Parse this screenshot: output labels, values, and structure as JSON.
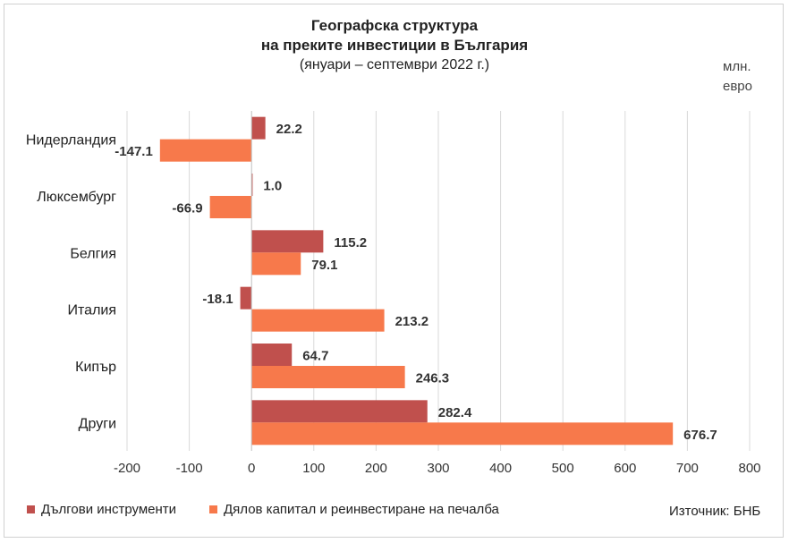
{
  "chart_data": {
    "type": "bar",
    "orientation": "horizontal",
    "title": "Географска структура",
    "title_line2": "на преките инвестиции в България",
    "subtitle": "(януари – септември 2022 г.)",
    "unit_line1": "млн.",
    "unit_line2": "евро",
    "categories": [
      "Нидерландия",
      "Люксембург",
      "Белгия",
      "Италия",
      "Кипър",
      "Други"
    ],
    "series": [
      {
        "name": "Дългови инструменти",
        "color": "#c0504d",
        "values": [
          22.2,
          1.0,
          115.2,
          -18.1,
          64.7,
          282.4
        ],
        "labels": [
          "22.2",
          "1.0",
          "115.2",
          "-18.1",
          "64.7",
          "282.4"
        ]
      },
      {
        "name": "Дялов капитал и реинвестиране на печалба",
        "color": "#f7794b",
        "values": [
          -147.1,
          -66.9,
          79.1,
          213.2,
          246.3,
          676.7
        ],
        "labels": [
          "-147.1",
          "-66.9",
          "79.1",
          "213.2",
          "246.3",
          "676.7"
        ]
      }
    ],
    "xlim": [
      -200,
      800
    ],
    "xticks": [
      "-200",
      "-100",
      "0",
      "100",
      "200",
      "300",
      "400",
      "500",
      "600",
      "700",
      "800"
    ],
    "grid": true,
    "legend_position": "bottom-left"
  },
  "source": "Източник: БНБ"
}
